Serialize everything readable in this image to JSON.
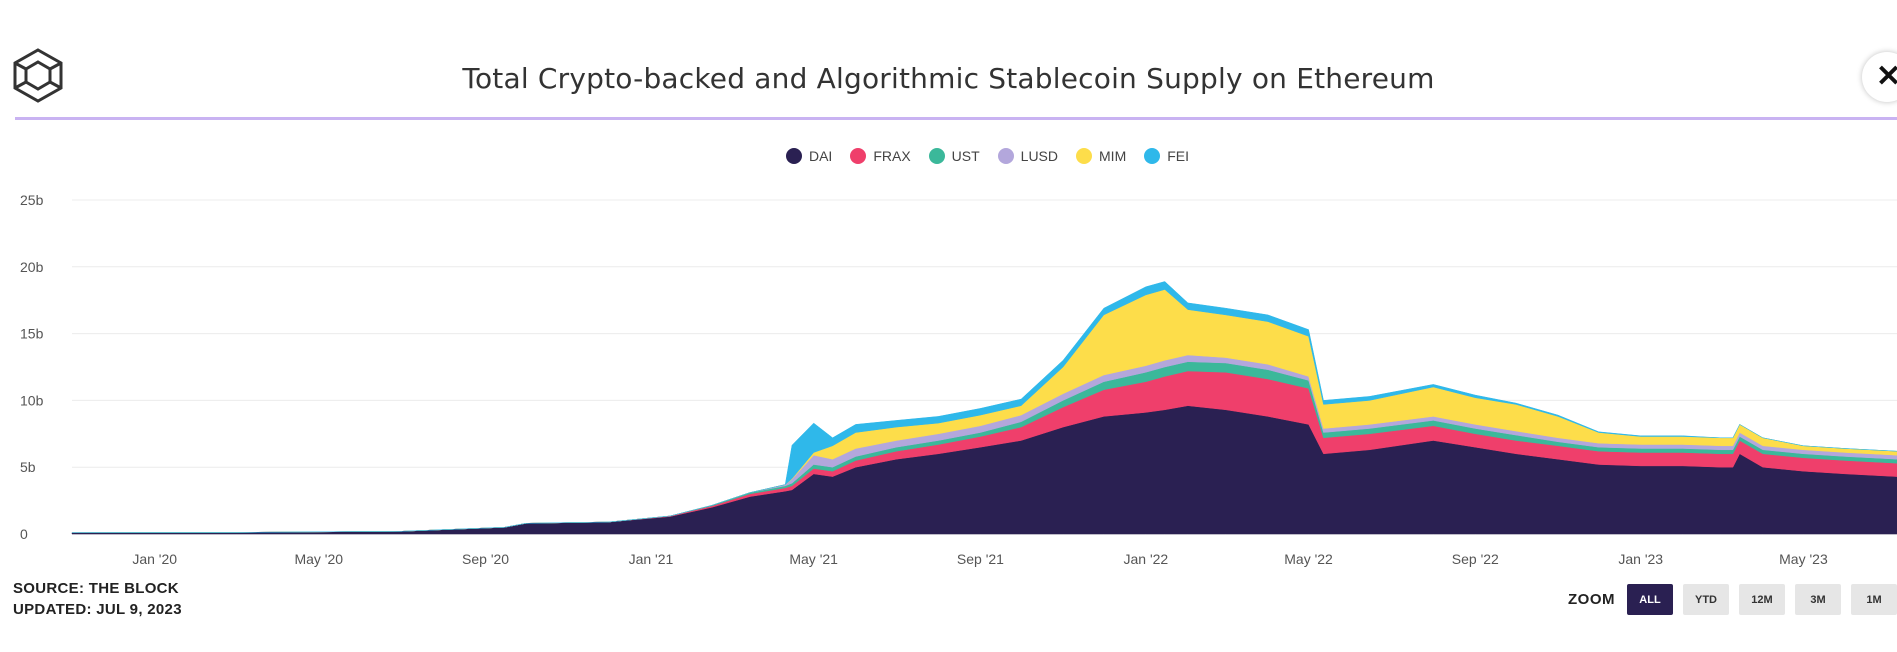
{
  "title": "Total Crypto-backed and Algorithmic Stablecoin Supply on Ethereum",
  "close_label": "✕",
  "source": {
    "line1": "SOURCE: THE BLOCK",
    "line2": "UPDATED: JUL 9, 2023"
  },
  "zoom": {
    "label": "ZOOM",
    "buttons": [
      "ALL",
      "YTD",
      "12M",
      "3M",
      "1M"
    ],
    "active": "ALL"
  },
  "colors": {
    "title_rule": "#c9b3f2",
    "zoom_active": "#2a2052"
  },
  "chart_data": {
    "type": "area",
    "stacked": true,
    "title": "Total Crypto-backed and Algorithmic Stablecoin Supply on Ethereum",
    "y_ticks": [
      "0",
      "5b",
      "10b",
      "15b",
      "20b",
      "25b"
    ],
    "ylim": [
      0,
      25
    ],
    "y_unit": "b",
    "x_tick_labels": [
      "Jan '20",
      "May '20",
      "Sep '20",
      "Jan '21",
      "May '21",
      "Sep '21",
      "Jan '22",
      "May '22",
      "Sep '22",
      "Jan '23",
      "May '23"
    ],
    "x_tick_dates": [
      "2020-01-01",
      "2020-05-01",
      "2020-09-01",
      "2021-01-01",
      "2021-05-01",
      "2021-09-01",
      "2022-01-01",
      "2022-05-01",
      "2022-09-01",
      "2023-01-01",
      "2023-05-01"
    ],
    "xlim": [
      "2019-11-01",
      "2023-07-09"
    ],
    "legend_position": "top-center",
    "grid": true,
    "x": [
      "2019-11-01",
      "2020-03-01",
      "2020-07-01",
      "2020-09-15",
      "2020-10-01",
      "2020-12-01",
      "2021-01-15",
      "2021-02-15",
      "2021-03-15",
      "2021-04-10",
      "2021-04-15",
      "2021-05-01",
      "2021-05-15",
      "2021-06-01",
      "2021-07-01",
      "2021-08-01",
      "2021-09-01",
      "2021-10-01",
      "2021-11-01",
      "2021-12-01",
      "2022-01-01",
      "2022-01-15",
      "2022-02-01",
      "2022-03-01",
      "2022-04-01",
      "2022-05-01",
      "2022-05-12",
      "2022-06-15",
      "2022-08-01",
      "2022-09-01",
      "2022-10-01",
      "2022-11-01",
      "2022-12-01",
      "2023-01-01",
      "2023-02-01",
      "2023-03-01",
      "2023-03-10",
      "2023-03-15",
      "2023-04-01",
      "2023-05-01",
      "2023-06-01",
      "2023-07-09"
    ],
    "series": [
      {
        "name": "DAI",
        "color": "#2a2052",
        "values": [
          0.1,
          0.12,
          0.2,
          0.5,
          0.8,
          0.9,
          1.3,
          2.0,
          2.8,
          3.2,
          3.3,
          4.5,
          4.3,
          5.0,
          5.6,
          6.0,
          6.5,
          7.0,
          8.0,
          8.8,
          9.1,
          9.3,
          9.6,
          9.3,
          8.8,
          8.2,
          6.0,
          6.3,
          7.0,
          6.5,
          6.0,
          5.6,
          5.2,
          5.1,
          5.1,
          5.0,
          5.0,
          6.0,
          5.0,
          4.7,
          4.5,
          4.3
        ]
      },
      {
        "name": "FRAX",
        "color": "#ef3f6b",
        "values": [
          0,
          0,
          0,
          0,
          0,
          0,
          0.05,
          0.1,
          0.2,
          0.25,
          0.3,
          0.4,
          0.4,
          0.5,
          0.6,
          0.7,
          0.8,
          1.0,
          1.5,
          2.0,
          2.3,
          2.5,
          2.6,
          2.8,
          2.8,
          2.7,
          1.2,
          1.2,
          1.1,
          1.0,
          1.0,
          1.0,
          1.0,
          1.0,
          1.0,
          1.0,
          1.0,
          1.0,
          1.0,
          1.0,
          1.0,
          1.0
        ]
      },
      {
        "name": "UST",
        "color": "#3bb89a",
        "values": [
          0,
          0,
          0,
          0,
          0,
          0,
          0,
          0.05,
          0.1,
          0.15,
          0.2,
          0.3,
          0.3,
          0.3,
          0.3,
          0.3,
          0.3,
          0.4,
          0.5,
          0.6,
          0.7,
          0.7,
          0.7,
          0.7,
          0.7,
          0.6,
          0.4,
          0.4,
          0.4,
          0.4,
          0.4,
          0.3,
          0.3,
          0.3,
          0.3,
          0.3,
          0.3,
          0.3,
          0.3,
          0.3,
          0.3,
          0.3
        ]
      },
      {
        "name": "LUSD",
        "color": "#b3a7dc",
        "values": [
          0,
          0,
          0,
          0,
          0,
          0,
          0,
          0,
          0,
          0.1,
          0.3,
          0.7,
          0.6,
          0.6,
          0.5,
          0.5,
          0.5,
          0.5,
          0.5,
          0.5,
          0.5,
          0.5,
          0.5,
          0.4,
          0.4,
          0.3,
          0.3,
          0.3,
          0.3,
          0.3,
          0.3,
          0.3,
          0.3,
          0.3,
          0.3,
          0.3,
          0.3,
          0.3,
          0.3,
          0.3,
          0.3,
          0.3
        ]
      },
      {
        "name": "MIM",
        "color": "#fddd4a",
        "values": [
          0,
          0,
          0,
          0,
          0,
          0,
          0,
          0,
          0,
          0,
          0.05,
          0.2,
          1.0,
          1.2,
          1.0,
          0.8,
          0.8,
          0.7,
          2.0,
          4.5,
          5.3,
          5.3,
          3.4,
          3.2,
          3.2,
          3.0,
          1.8,
          1.8,
          2.2,
          2.0,
          2.0,
          1.6,
          0.8,
          0.6,
          0.6,
          0.6,
          0.6,
          0.6,
          0.6,
          0.3,
          0.3,
          0.3
        ]
      },
      {
        "name": "FEI",
        "color": "#2fb8ea",
        "values": [
          0,
          0,
          0,
          0,
          0,
          0,
          0,
          0,
          0,
          0,
          2.5,
          2.2,
          0.6,
          0.6,
          0.5,
          0.5,
          0.5,
          0.5,
          0.5,
          0.5,
          0.6,
          0.6,
          0.5,
          0.5,
          0.5,
          0.5,
          0.3,
          0.3,
          0.2,
          0.2,
          0.1,
          0.1,
          0.05,
          0.05,
          0.05,
          0,
          0,
          0,
          0,
          0,
          0,
          0
        ]
      }
    ]
  }
}
